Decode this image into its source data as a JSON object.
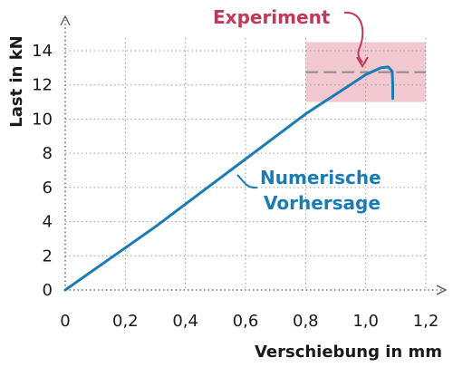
{
  "chart_data": {
    "type": "line",
    "xlabel": "Verschiebung in mm",
    "ylabel": "Last in kN",
    "xlim": [
      0,
      1.2
    ],
    "ylim": [
      0,
      14
    ],
    "x_ticks": [
      0,
      0.2,
      0.4,
      0.6,
      0.8,
      1.0,
      1.2
    ],
    "x_tick_labels": [
      "0",
      "0,2",
      "0,4",
      "0,6",
      "0,8",
      "1,0",
      "1,2"
    ],
    "y_ticks": [
      0,
      2,
      4,
      6,
      8,
      10,
      12,
      14
    ],
    "y_tick_labels": [
      "0",
      "2",
      "4",
      "6",
      "8",
      "10",
      "12",
      "14"
    ],
    "grid": "dotted",
    "series": [
      {
        "name": "Numerische Vorhersage",
        "color": "#1a7bb5",
        "x": [
          0,
          0.3,
          0.55,
          0.8,
          1.0,
          1.05,
          1.075,
          1.088,
          1.09,
          1.09
        ],
        "y": [
          0,
          3.7,
          7.0,
          10.3,
          12.6,
          13.0,
          13.05,
          12.8,
          12.0,
          11.2
        ]
      }
    ],
    "experiment": {
      "name": "Experiment",
      "color": "#c0385a",
      "band_color": "#f2c9d0",
      "x_range": [
        0.8,
        1.2
      ],
      "y_range": [
        11.0,
        14.5
      ],
      "mean": 12.75
    }
  }
}
